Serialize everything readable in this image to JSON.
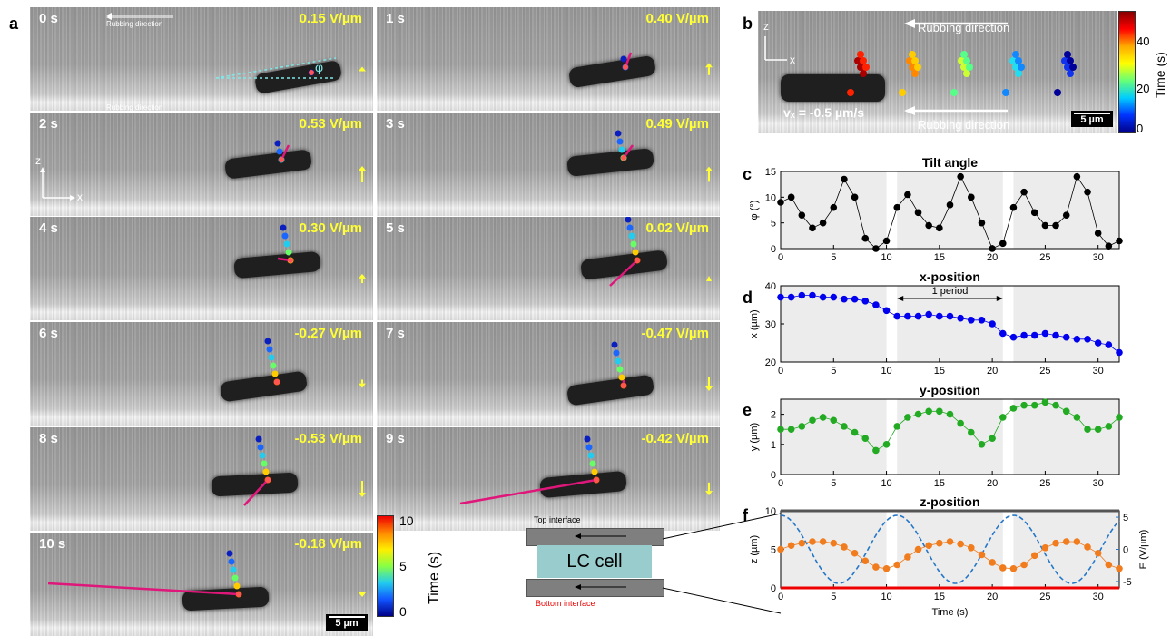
{
  "panel_labels": {
    "a": "a",
    "b": "b",
    "c": "c",
    "d": "d",
    "e": "e",
    "f": "f"
  },
  "frames": [
    {
      "time": "0 s",
      "field": "0.15 V/µm",
      "E": 0.15
    },
    {
      "time": "1 s",
      "field": "0.40 V/µm",
      "E": 0.4
    },
    {
      "time": "2 s",
      "field": "0.53 V/µm",
      "E": 0.53
    },
    {
      "time": "3 s",
      "field": "0.49 V/µm",
      "E": 0.49
    },
    {
      "time": "4 s",
      "field": "0.30 V/µm",
      "E": 0.3
    },
    {
      "time": "5 s",
      "field": "0.02 V/µm",
      "E": 0.02
    },
    {
      "time": "6 s",
      "field": "-0.27 V/µm",
      "E": -0.27
    },
    {
      "time": "7 s",
      "field": "-0.47 V/µm",
      "E": -0.47
    },
    {
      "time": "8 s",
      "field": "-0.53 V/µm",
      "E": -0.53
    },
    {
      "time": "9 s",
      "field": "-0.42 V/µm",
      "E": -0.42
    },
    {
      "time": "10 s",
      "field": "-0.18 V/µm",
      "E": -0.18
    }
  ],
  "rubbing_direction": "Rubbing direction",
  "phi_symbol": "φ",
  "axis_z": "z",
  "axis_x": "x",
  "scale_bar": "5 µm",
  "colorbar_a": {
    "label": "Time (s)",
    "ticks": [
      "0",
      "5",
      "10"
    ]
  },
  "colorbar_b": {
    "label": "Time (s)",
    "ticks": [
      "0",
      "20",
      "40"
    ]
  },
  "velocity_label": "vₓ = -0.5 µm/s",
  "lc_cell": {
    "top": "Top interface",
    "center": "LC cell",
    "bottom": "Bottom interface"
  },
  "one_period": "1 period",
  "chart_data": [
    {
      "type": "line",
      "title": "Tilt angle",
      "ylabel": "φ (°)",
      "xlim": [
        0,
        32
      ],
      "ylim": [
        0,
        15
      ],
      "yticks": [
        0,
        5,
        10,
        15
      ],
      "x": [
        0,
        1,
        2,
        3,
        4,
        5,
        6,
        7,
        8,
        9,
        10,
        11,
        12,
        13,
        14,
        15,
        16,
        17,
        18,
        19,
        20,
        21,
        22,
        23,
        24,
        25,
        26,
        27,
        28,
        29,
        30,
        31,
        32
      ],
      "values": [
        9,
        10,
        6.5,
        4,
        5,
        8,
        13.5,
        10,
        2,
        0,
        1.5,
        8,
        10.5,
        7,
        4.5,
        4,
        8.5,
        14,
        10,
        5,
        0,
        1,
        8,
        11,
        7,
        4.5,
        4.5,
        6.5,
        14,
        11,
        3,
        0.5,
        1.5
      ],
      "color": "#000000",
      "shaded": [
        [
          0,
          10
        ],
        [
          11,
          21
        ],
        [
          22,
          32
        ]
      ]
    },
    {
      "type": "line",
      "title": "x-position",
      "ylabel": "x  (µm)",
      "xlim": [
        0,
        32
      ],
      "ylim": [
        20,
        40
      ],
      "yticks": [
        20,
        30,
        40
      ],
      "x": [
        0,
        1,
        2,
        3,
        4,
        5,
        6,
        7,
        8,
        9,
        10,
        11,
        12,
        13,
        14,
        15,
        16,
        17,
        18,
        19,
        20,
        21,
        22,
        23,
        24,
        25,
        26,
        27,
        28,
        29,
        30,
        31,
        32
      ],
      "values": [
        37,
        37,
        37.5,
        37.5,
        37,
        37,
        36.5,
        36.5,
        36,
        35,
        33.5,
        32,
        32,
        32,
        32.5,
        32,
        32,
        31.5,
        31,
        31,
        30,
        27.5,
        26.5,
        27,
        27,
        27.5,
        27,
        26.5,
        26,
        26,
        25,
        24.5,
        22.5
      ],
      "color": "#0000ee",
      "shaded": [
        [
          0,
          10
        ],
        [
          11,
          21
        ],
        [
          22,
          32
        ]
      ]
    },
    {
      "type": "line",
      "title": "y-position",
      "ylabel": "y  (µm)",
      "xlim": [
        0,
        32
      ],
      "ylim": [
        0,
        2.5
      ],
      "yticks": [
        0,
        1,
        2
      ],
      "x": [
        0,
        1,
        2,
        3,
        4,
        5,
        6,
        7,
        8,
        9,
        10,
        11,
        12,
        13,
        14,
        15,
        16,
        17,
        18,
        19,
        20,
        21,
        22,
        23,
        24,
        25,
        26,
        27,
        28,
        29,
        30,
        31,
        32
      ],
      "values": [
        1.5,
        1.5,
        1.6,
        1.8,
        1.9,
        1.8,
        1.6,
        1.4,
        1.2,
        0.8,
        1.0,
        1.6,
        1.9,
        2.0,
        2.1,
        2.1,
        2.0,
        1.7,
        1.4,
        1.0,
        1.2,
        1.9,
        2.2,
        2.3,
        2.3,
        2.4,
        2.3,
        2.1,
        1.9,
        1.5,
        1.5,
        1.6,
        1.9
      ],
      "color": "#22aa22",
      "shaded": [
        [
          0,
          10
        ],
        [
          11,
          21
        ],
        [
          22,
          32
        ]
      ]
    },
    {
      "type": "line",
      "title": "z-position",
      "ylabel": "z  (µm)",
      "ylabel_right": "E (V/µm)",
      "xlabel": "Time (s)",
      "xlim": [
        0,
        32
      ],
      "ylim": [
        0,
        10
      ],
      "yticks": [
        0,
        5,
        10
      ],
      "yticks_right": [
        -5,
        0,
        5
      ],
      "x": [
        0,
        1,
        2,
        3,
        4,
        5,
        6,
        7,
        8,
        9,
        10,
        11,
        12,
        13,
        14,
        15,
        16,
        17,
        18,
        19,
        20,
        21,
        22,
        23,
        24,
        25,
        26,
        27,
        28,
        29,
        30,
        31,
        32
      ],
      "values": [
        5,
        5.5,
        5.8,
        6,
        6,
        5.8,
        5.3,
        4.5,
        3.5,
        2.7,
        2.5,
        3,
        4,
        5,
        5.5,
        5.8,
        6,
        5.7,
        5.2,
        4.3,
        3.3,
        2.6,
        2.5,
        3,
        4.2,
        5.2,
        5.8,
        6,
        6,
        5.3,
        4.5,
        3,
        2.5
      ],
      "color": "#f07c1e",
      "shaded": [
        [
          0,
          10
        ],
        [
          11,
          21
        ],
        [
          22,
          32
        ]
      ],
      "series": [
        {
          "name": "E",
          "style": "dashed",
          "color": "#2477c8",
          "amplitude": 5.3,
          "period": 11,
          "phase": -2.75
        }
      ]
    }
  ]
}
